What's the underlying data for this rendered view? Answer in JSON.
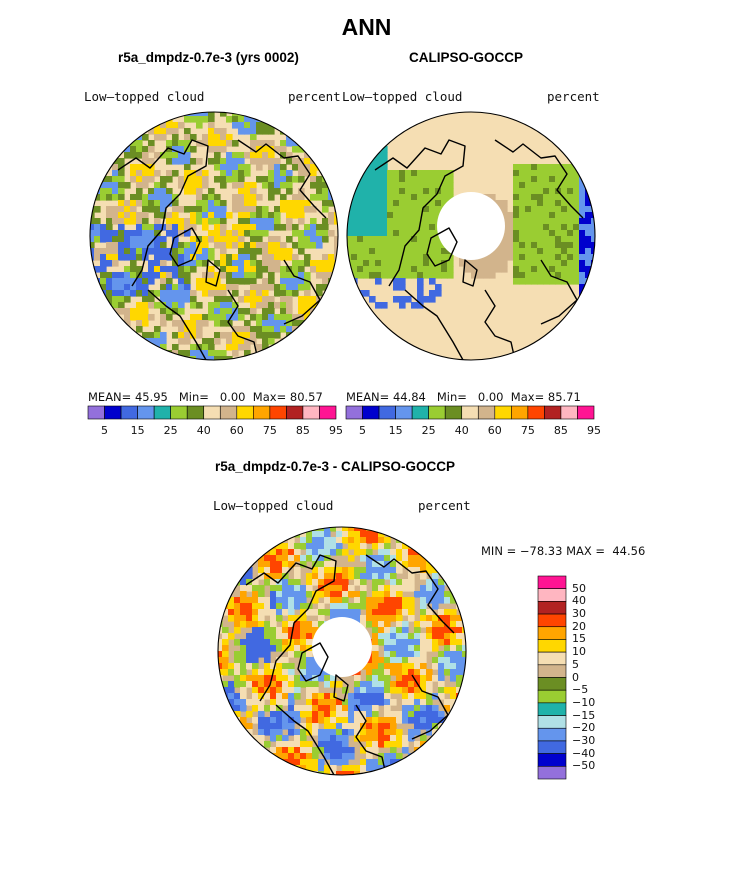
{
  "chart_data": [
    {
      "type": "heatmap",
      "projection": "north polar stereographic",
      "figure_title": "ANN",
      "title": "r5a_dmpdz-0.7e-3 (yrs 0002)",
      "variable_label": "Low–topped cloud",
      "units_label": "percent",
      "stats": {
        "mean_label": "MEAN=",
        "mean": "45.95",
        "min_label": "Min=",
        "min": "0.00",
        "max_label": "Max=",
        "max": "80.57"
      },
      "colorbar": {
        "orientation": "horizontal",
        "colors": [
          "#9370db",
          "#0000cd",
          "#4169e1",
          "#6495ed",
          "#20b2aa",
          "#9acd32",
          "#6b8e23",
          "#f5deb3",
          "#d2b48c",
          "#ffd700",
          "#ffa500",
          "#ff4500",
          "#b22222",
          "#ffb6c1",
          "#ff1493"
        ],
        "tick_labels": [
          "5",
          "15",
          "25",
          "40",
          "60",
          "75",
          "85",
          "95"
        ]
      }
    },
    {
      "type": "heatmap",
      "projection": "north polar stereographic",
      "title": "CALIPSO-GOCCP",
      "variable_label": "Low–topped cloud",
      "units_label": "percent",
      "stats": {
        "mean_label": "MEAN=",
        "mean": "44.84",
        "min_label": "Min=",
        "min": "0.00",
        "max_label": "Max=",
        "max": "85.71"
      },
      "colorbar": {
        "orientation": "horizontal",
        "colors": [
          "#9370db",
          "#0000cd",
          "#4169e1",
          "#6495ed",
          "#20b2aa",
          "#9acd32",
          "#6b8e23",
          "#f5deb3",
          "#d2b48c",
          "#ffd700",
          "#ffa500",
          "#ff4500",
          "#b22222",
          "#ffb6c1",
          "#ff1493"
        ],
        "tick_labels": [
          "5",
          "15",
          "25",
          "40",
          "60",
          "75",
          "85",
          "95"
        ]
      }
    },
    {
      "type": "heatmap",
      "projection": "north polar stereographic",
      "title": "r5a_dmpdz-0.7e-3 - CALIPSO-GOCCP",
      "variable_label": "Low–topped cloud",
      "units_label": "percent",
      "stats": {
        "min_text": "MIN = −78.33",
        "max_text": "MAX =  44.56"
      },
      "colorbar": {
        "orientation": "vertical",
        "colors": [
          "#ff1493",
          "#ffb6c1",
          "#b22222",
          "#ff4500",
          "#ffa500",
          "#ffd700",
          "#f5deb3",
          "#d2b48c",
          "#6b8e23",
          "#9acd32",
          "#20b2aa",
          "#b0e0e6",
          "#6495ed",
          "#4169e1",
          "#0000cd",
          "#9370db"
        ],
        "tick_labels": [
          "50",
          "40",
          "30",
          "20",
          "15",
          "10",
          "5",
          "0",
          "−5",
          "−10",
          "−15",
          "−20",
          "−30",
          "−40",
          "−50"
        ]
      }
    }
  ]
}
